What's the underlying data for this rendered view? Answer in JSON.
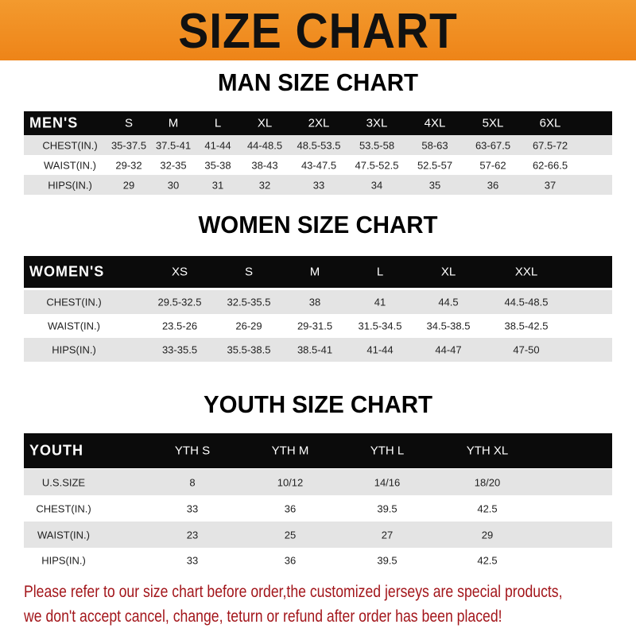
{
  "banner": {
    "title": "SIZE CHART",
    "color": "#ef8a20"
  },
  "men": {
    "title": "MAN SIZE CHART",
    "header": [
      "MEN'S",
      "S",
      "M",
      "L",
      "XL",
      "2XL",
      "3XL",
      "4XL",
      "5XL",
      "6XL"
    ],
    "rows": [
      [
        "CHEST(IN.)",
        "35-37.5",
        "37.5-41",
        "41-44",
        "44-48.5",
        "48.5-53.5",
        "53.5-58",
        "58-63",
        "63-67.5",
        "67.5-72"
      ],
      [
        "WAIST(IN.)",
        "29-32",
        "32-35",
        "35-38",
        "38-43",
        "43-47.5",
        "47.5-52.5",
        "52.5-57",
        "57-62",
        "62-66.5"
      ],
      [
        "HIPS(IN.)",
        "29",
        "30",
        "31",
        "32",
        "33",
        "34",
        "35",
        "36",
        "37"
      ]
    ]
  },
  "women": {
    "title": "WOMEN SIZE CHART",
    "header": [
      "WOMEN'S",
      "XS",
      "S",
      "M",
      "L",
      "XL",
      "XXL"
    ],
    "rows": [
      [
        "CHEST(IN.)",
        "29.5-32.5",
        "32.5-35.5",
        "38",
        "41",
        "44.5",
        "44.5-48.5"
      ],
      [
        "WAIST(IN.)",
        "23.5-26",
        "26-29",
        "29-31.5",
        "31.5-34.5",
        "34.5-38.5",
        "38.5-42.5"
      ],
      [
        "HIPS(IN.)",
        "33-35.5",
        "35.5-38.5",
        "38.5-41",
        "41-44",
        "44-47",
        "47-50"
      ]
    ]
  },
  "youth": {
    "title": "YOUTH SIZE CHART",
    "header": [
      "YOUTH",
      "YTH S",
      "YTH M",
      "YTH L",
      "YTH XL"
    ],
    "rows": [
      [
        "U.S.SIZE",
        "8",
        "10/12",
        "14/16",
        "18/20"
      ],
      [
        "CHEST(IN.)",
        "33",
        "36",
        "39.5",
        "42.5"
      ],
      [
        "WAIST(IN.)",
        "23",
        "25",
        "27",
        "29"
      ],
      [
        "HIPS(IN.)",
        "33",
        "36",
        "39.5",
        "42.5"
      ]
    ]
  },
  "notice": {
    "line1": "Please refer to our size chart before order,the customized jerseys are special products,",
    "line2": "we don't accept cancel, change, teturn or refund after order has been placed!",
    "color": "#a3161b"
  }
}
